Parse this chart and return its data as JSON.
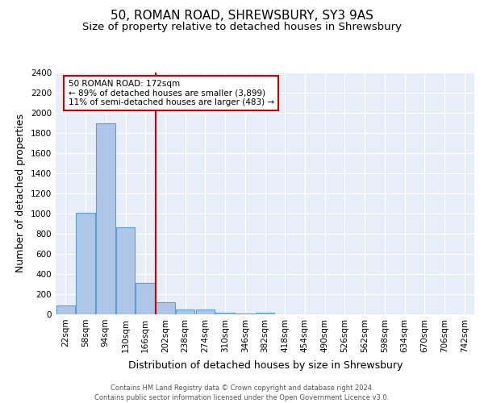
{
  "title": "50, ROMAN ROAD, SHREWSBURY, SY3 9AS",
  "subtitle": "Size of property relative to detached houses in Shrewsbury",
  "xlabel": "Distribution of detached houses by size in Shrewsbury",
  "ylabel": "Number of detached properties",
  "footer_line1": "Contains HM Land Registry data © Crown copyright and database right 2024.",
  "footer_line2": "Contains public sector information licensed under the Open Government Licence v3.0.",
  "bar_labels": [
    "22sqm",
    "58sqm",
    "94sqm",
    "130sqm",
    "166sqm",
    "202sqm",
    "238sqm",
    "274sqm",
    "310sqm",
    "346sqm",
    "382sqm",
    "418sqm",
    "454sqm",
    "490sqm",
    "526sqm",
    "562sqm",
    "598sqm",
    "634sqm",
    "670sqm",
    "706sqm",
    "742sqm"
  ],
  "bar_values": [
    88,
    1012,
    1893,
    862,
    315,
    120,
    52,
    46,
    20,
    10,
    18,
    0,
    0,
    0,
    0,
    0,
    0,
    0,
    0,
    0,
    0
  ],
  "bar_color": "#aec6e8",
  "bar_edge_color": "#5a9fd4",
  "bar_edge_width": 0.8,
  "bg_color": "#e8eef8",
  "grid_color": "#ffffff",
  "ylim": [
    0,
    2400
  ],
  "yticks": [
    0,
    200,
    400,
    600,
    800,
    1000,
    1200,
    1400,
    1600,
    1800,
    2000,
    2200,
    2400
  ],
  "property_line_x": 4.5,
  "property_line_color": "#cc0000",
  "annotation_text_line1": "50 ROMAN ROAD: 172sqm",
  "annotation_text_line2": "← 89% of detached houses are smaller (3,899)",
  "annotation_text_line3": "11% of semi-detached houses are larger (483) →",
  "annotation_box_color": "#ffffff",
  "annotation_box_edge": "#cc0000",
  "title_fontsize": 11,
  "subtitle_fontsize": 9.5,
  "label_fontsize": 9,
  "tick_fontsize": 7.5,
  "annotation_fontsize": 7.5,
  "footer_fontsize": 6.0
}
